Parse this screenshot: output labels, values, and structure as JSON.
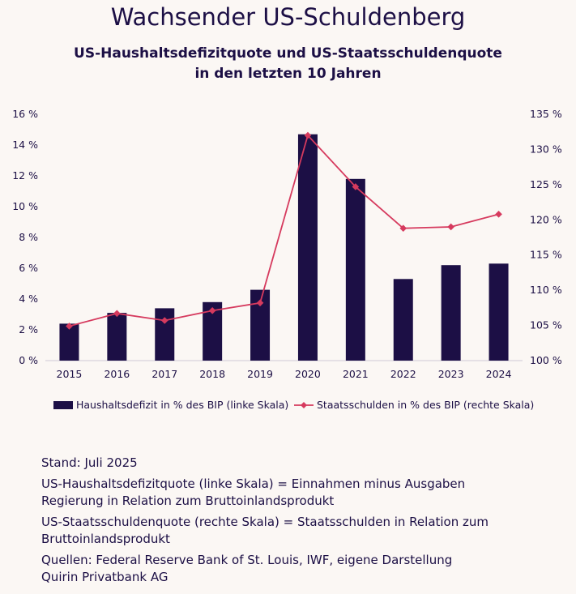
{
  "header": {
    "title": "Wachsender US-Schuldenberg",
    "subtitle_line1": "US-Haushaltsdefizitquote und US-Staatsschuldenquote",
    "subtitle_line2": "in den letzten 10 Jahren"
  },
  "colors": {
    "bar": "#1c0f45",
    "line": "#d63a5e",
    "text": "#1c0f45",
    "background": "#fbf7f4"
  },
  "chart_data": {
    "type": "bar",
    "categories": [
      "2015",
      "2016",
      "2017",
      "2018",
      "2019",
      "2020",
      "2021",
      "2022",
      "2023",
      "2024"
    ],
    "series": [
      {
        "name": "Haushaltsdefizit in % des BIP (linke Skala)",
        "type": "bar",
        "axis": "left",
        "values": [
          2.4,
          3.1,
          3.4,
          3.8,
          4.6,
          14.7,
          11.8,
          5.3,
          6.2,
          6.3
        ]
      },
      {
        "name": "Staatsschulden in % des BIP (rechte Skala)",
        "type": "line",
        "axis": "right",
        "values": [
          104.9,
          106.7,
          105.7,
          107.1,
          108.2,
          132.0,
          124.7,
          118.8,
          119.0,
          120.8
        ]
      }
    ],
    "y_left": {
      "range": [
        0,
        16
      ],
      "ticks": [
        0,
        2,
        4,
        6,
        8,
        10,
        12,
        14,
        16
      ],
      "tick_labels": [
        "0 %",
        "2 %",
        "4 %",
        "6 %",
        "8 %",
        "10 %",
        "12 %",
        "14 %",
        "16 %"
      ]
    },
    "y_right": {
      "range": [
        100,
        135
      ],
      "ticks": [
        100,
        105,
        110,
        115,
        120,
        125,
        130,
        135
      ],
      "tick_labels": [
        "100 %",
        "105 %",
        "110 %",
        "115 %",
        "120 %",
        "125 %",
        "130 %",
        "135 %"
      ]
    },
    "grid": false,
    "legend_position": "bottom"
  },
  "notes": {
    "stand": "Stand: Juli 2025",
    "def1_line1": "US-Haushaltsdefizitquote (linke Skala) = Einnahmen minus Ausgaben",
    "def1_line2": "Regierung in Relation zum Bruttoinlandsprodukt",
    "def2_line1": "US-Staatsschuldenquote (rechte Skala) = Staatsschulden in Relation zum",
    "def2_line2": "Bruttoinlandsprodukt",
    "sources_line1": "Quellen: Federal Reserve Bank of St. Louis, IWF, eigene Darstellung",
    "sources_line2": "Quirin Privatbank AG"
  }
}
